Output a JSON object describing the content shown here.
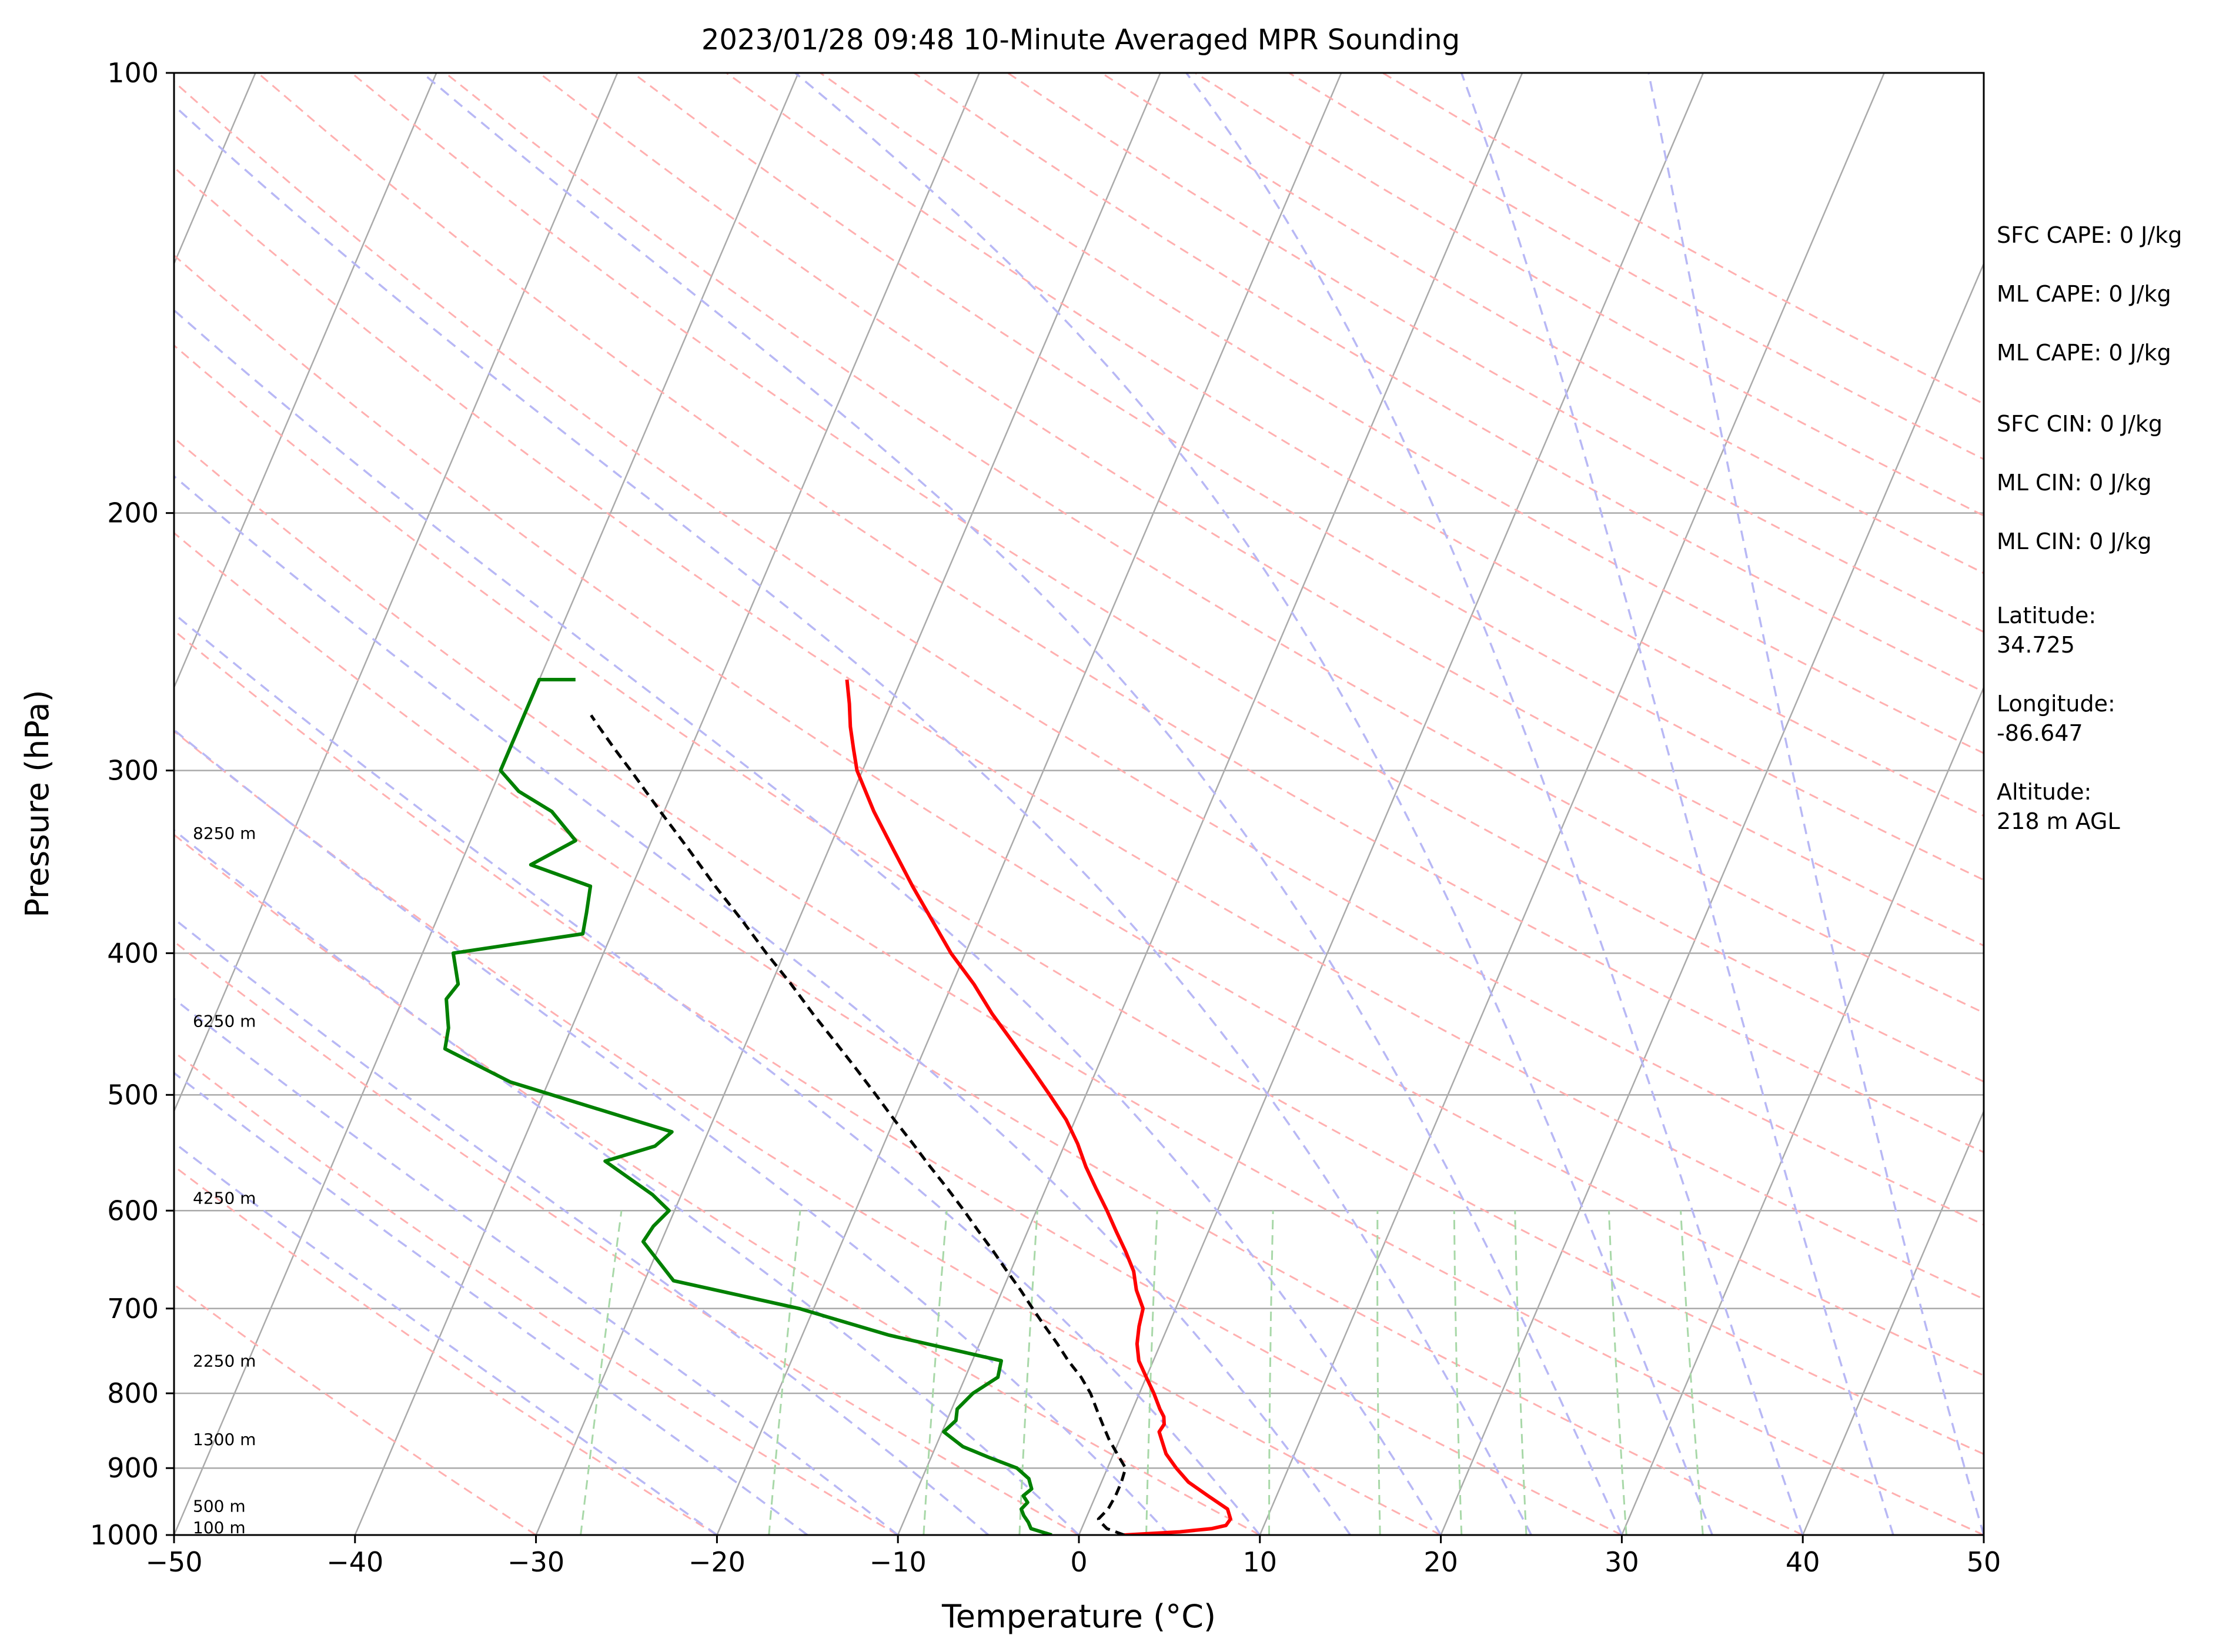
{
  "chart_data": {
    "type": "line",
    "title": "2023/01/28 09:48 10-Minute Averaged MPR Sounding",
    "xlabel": "Temperature (°C)",
    "ylabel": "Pressure (hPa)",
    "xlim": [
      -50,
      50
    ],
    "ylim": [
      1000,
      100
    ],
    "y_scale": "log",
    "x_ticks": [
      "−50",
      "−40",
      "−30",
      "−20",
      "−10",
      "0",
      "10",
      "20",
      "30",
      "40",
      "50"
    ],
    "y_ticks": [
      "100",
      "200",
      "300",
      "400",
      "500",
      "600",
      "700",
      "800",
      "900",
      "1000"
    ],
    "grid": true,
    "colors": {
      "temperature": "#ff0000",
      "dewpoint": "#008000",
      "parcel": "#000000",
      "isotherm": "#aaaaaa",
      "dry_adiabat": "#ffb0b0",
      "moist_adiabat": "#b8b8f5",
      "mixing_ratio": "#a8d8a8"
    },
    "series": [
      {
        "name": "",
        "role": "temperature",
        "pressure": [
          1000,
          995,
          990,
          985,
          975,
          960,
          940,
          920,
          900,
          880,
          860,
          850,
          840,
          830,
          820,
          800,
          780,
          760,
          740,
          720,
          700,
          680,
          660,
          640,
          620,
          600,
          580,
          560,
          540,
          520,
          500,
          480,
          460,
          440,
          420,
          400,
          380,
          360,
          340,
          320,
          300,
          290,
          280,
          270,
          260
        ],
        "values": [
          2.5,
          5.5,
          7.2,
          7.9,
          8.0,
          7.6,
          6.2,
          4.8,
          3.8,
          2.9,
          2.3,
          2.0,
          2.1,
          1.9,
          1.5,
          0.8,
          0.0,
          -0.8,
          -1.3,
          -1.6,
          -1.8,
          -2.6,
          -3.2,
          -4.1,
          -5.1,
          -6.1,
          -7.2,
          -8.3,
          -9.3,
          -10.5,
          -12.0,
          -13.6,
          -15.3,
          -17.1,
          -18.8,
          -20.8,
          -22.6,
          -24.5,
          -26.4,
          -28.4,
          -30.3,
          -31.0,
          -31.7,
          -32.3,
          -33.0
        ]
      },
      {
        "name": "",
        "role": "dewpoint",
        "pressure": [
          1000,
          990,
          980,
          970,
          960,
          950,
          940,
          930,
          915,
          900,
          885,
          870,
          850,
          835,
          820,
          800,
          780,
          760,
          730,
          700,
          670,
          630,
          615,
          600,
          585,
          555,
          542,
          530,
          490,
          465,
          450,
          445,
          430,
          420,
          400,
          388,
          375,
          360,
          348,
          335,
          320,
          310,
          300,
          300,
          260,
          260
        ],
        "values": [
          -1.5,
          -2.8,
          -3.1,
          -3.5,
          -3.8,
          -3.6,
          -4.0,
          -3.7,
          -4.1,
          -5.0,
          -6.8,
          -8.5,
          -9.9,
          -9.5,
          -9.7,
          -9.2,
          -8.2,
          -8.4,
          -15.2,
          -20.8,
          -28.4,
          -31.0,
          -30.8,
          -30.3,
          -31.6,
          -35.0,
          -32.6,
          -32.0,
          -42.1,
          -46.5,
          -46.8,
          -47.0,
          -47.6,
          -47.3,
          -48.3,
          -41.6,
          -41.9,
          -42.3,
          -46.1,
          -44.2,
          -46.2,
          -48.5,
          -50.0,
          -50.0,
          -50.0,
          -48.0
        ]
      },
      {
        "name": "",
        "role": "parcel",
        "pressure": [
          1000,
          990,
          980,
          975,
          960,
          940,
          920,
          900,
          880,
          860,
          840,
          820,
          800,
          780,
          760,
          740,
          720,
          700,
          680,
          660,
          640,
          620,
          600,
          580,
          560,
          540,
          520,
          500,
          480,
          460,
          440,
          420,
          400,
          380,
          360,
          340,
          320,
          300,
          290,
          280,
          275
        ],
        "values": [
          2.5,
          1.4,
          0.9,
          0.7,
          1.0,
          1.1,
          1.1,
          1.0,
          0.2,
          -0.6,
          -1.3,
          -2.0,
          -2.7,
          -3.6,
          -4.7,
          -5.7,
          -6.8,
          -7.9,
          -9.0,
          -10.2,
          -11.4,
          -12.7,
          -14.0,
          -15.4,
          -16.9,
          -18.4,
          -20.0,
          -21.6,
          -23.3,
          -25.1,
          -27.0,
          -28.9,
          -31.0,
          -33.1,
          -35.4,
          -37.7,
          -40.2,
          -42.8,
          -44.2,
          -45.6,
          -46.3
        ]
      }
    ],
    "height_labels": [
      {
        "text": "100 m",
        "pressure": 988
      },
      {
        "text": "500 m",
        "pressure": 955
      },
      {
        "text": "1300 m",
        "pressure": 860
      },
      {
        "text": "2250 m",
        "pressure": 760
      },
      {
        "text": "4250 m",
        "pressure": 588
      },
      {
        "text": "6250 m",
        "pressure": 445
      },
      {
        "text": "8250 m",
        "pressure": 331
      }
    ],
    "side_annotations": [
      "SFC CAPE: 0 J/kg",
      "ML CAPE: 0 J/kg",
      "ML CAPE: 0 J/kg",
      "SFC CIN: 0 J/kg",
      "ML CIN: 0 J/kg",
      "ML CIN: 0 J/kg",
      "Latitude:\n34.725",
      "Longitude:\n-86.647",
      "Altitude:\n218 m AGL"
    ]
  }
}
